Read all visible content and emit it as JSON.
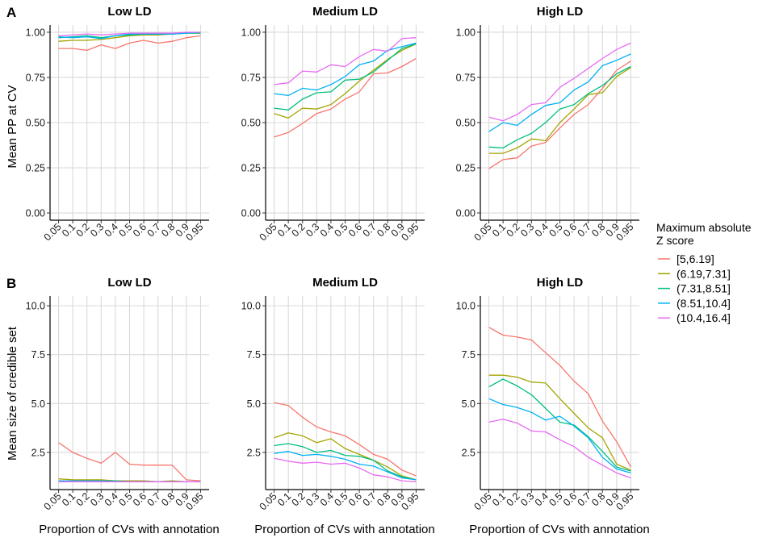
{
  "figure": {
    "row_labels": [
      "A",
      "B"
    ],
    "xlabel": "Proportion of CVs with annotation",
    "row_ylabels": [
      "Mean PP at CV",
      "Mean size of credible set"
    ],
    "legend_title_lines": [
      "Maximum absolute",
      "Z score"
    ],
    "legend_items": [
      "[5,6.19]",
      "(6.19,7.31]",
      "(7.31,8.51]",
      "(8.51,10.4]",
      "(10.4,16.4]"
    ],
    "colors": [
      "#F8766D",
      "#A3A500",
      "#00BF7D",
      "#00B0F6",
      "#E76BF3"
    ]
  },
  "chart_data": [
    {
      "type": "line",
      "title": "Low LD",
      "row": 0,
      "col": 0,
      "xlabel": "",
      "ylabel": "Mean PP at CV",
      "categories": [
        "0.05",
        "0.1",
        "0.2",
        "0.3",
        "0.4",
        "0.5",
        "0.6",
        "0.7",
        "0.8",
        "0.9",
        "0.95"
      ],
      "ylim": [
        -0.04,
        1.04
      ],
      "yticks": [
        0,
        0.25,
        0.5,
        0.75,
        1
      ],
      "ytick_labels": [
        "0.00",
        "0.25",
        "0.50",
        "0.75",
        "1.00"
      ],
      "grid": true,
      "legend": "right",
      "series": [
        {
          "name": "[5,6.19]",
          "values": [
            0.91,
            0.91,
            0.9,
            0.93,
            0.91,
            0.94,
            0.955,
            0.94,
            0.95,
            0.97,
            0.98
          ]
        },
        {
          "name": "(6.19,7.31]",
          "values": [
            0.95,
            0.955,
            0.955,
            0.96,
            0.97,
            0.98,
            0.985,
            0.985,
            0.99,
            0.995,
            0.995
          ]
        },
        {
          "name": "(7.31,8.51]",
          "values": [
            0.97,
            0.975,
            0.98,
            0.97,
            0.98,
            0.985,
            0.99,
            0.99,
            0.99,
            0.995,
            0.995
          ]
        },
        {
          "name": "(8.51,10.4]",
          "values": [
            0.975,
            0.97,
            0.975,
            0.965,
            0.98,
            0.99,
            0.99,
            0.99,
            0.99,
            0.995,
            1.0
          ]
        },
        {
          "name": "(10.4,16.4]",
          "values": [
            0.98,
            0.985,
            0.99,
            0.985,
            0.99,
            0.995,
            0.995,
            0.995,
            0.995,
            1.0,
            1.0
          ]
        }
      ]
    },
    {
      "type": "line",
      "title": "Medium LD",
      "row": 0,
      "col": 1,
      "xlabel": "",
      "ylabel": "",
      "categories": [
        "0.05",
        "0.1",
        "0.2",
        "0.3",
        "0.4",
        "0.5",
        "0.6",
        "0.7",
        "0.8",
        "0.9",
        "0.95"
      ],
      "ylim": [
        -0.04,
        1.04
      ],
      "yticks": [
        0,
        0.25,
        0.5,
        0.75,
        1
      ],
      "ytick_labels": [
        "0.00",
        "0.25",
        "0.50",
        "0.75",
        "1.00"
      ],
      "grid": true,
      "series": [
        {
          "name": "[5,6.19]",
          "values": [
            0.42,
            0.445,
            0.495,
            0.55,
            0.575,
            0.63,
            0.67,
            0.77,
            0.775,
            0.81,
            0.855
          ]
        },
        {
          "name": "(6.19,7.31]",
          "values": [
            0.55,
            0.525,
            0.58,
            0.575,
            0.6,
            0.66,
            0.73,
            0.79,
            0.85,
            0.9,
            0.935
          ]
        },
        {
          "name": "(7.31,8.51]",
          "values": [
            0.58,
            0.57,
            0.63,
            0.665,
            0.67,
            0.735,
            0.74,
            0.78,
            0.845,
            0.91,
            0.935
          ]
        },
        {
          "name": "(8.51,10.4]",
          "values": [
            0.66,
            0.65,
            0.69,
            0.68,
            0.71,
            0.755,
            0.82,
            0.84,
            0.9,
            0.92,
            0.94
          ]
        },
        {
          "name": "(10.4,16.4]",
          "values": [
            0.71,
            0.72,
            0.785,
            0.78,
            0.82,
            0.81,
            0.865,
            0.905,
            0.895,
            0.965,
            0.97
          ]
        }
      ]
    },
    {
      "type": "line",
      "title": "High LD",
      "row": 0,
      "col": 2,
      "xlabel": "",
      "ylabel": "",
      "categories": [
        "0.05",
        "0.1",
        "0.2",
        "0.3",
        "0.4",
        "0.5",
        "0.6",
        "0.7",
        "0.8",
        "0.9",
        "0.95"
      ],
      "ylim": [
        -0.04,
        1.04
      ],
      "yticks": [
        0,
        0.25,
        0.5,
        0.75,
        1
      ],
      "ytick_labels": [
        "0.00",
        "0.25",
        "0.50",
        "0.75",
        "1.00"
      ],
      "grid": true,
      "series": [
        {
          "name": "[5,6.19]",
          "values": [
            0.245,
            0.295,
            0.305,
            0.37,
            0.39,
            0.47,
            0.545,
            0.6,
            0.69,
            0.79,
            0.84
          ]
        },
        {
          "name": "(6.19,7.31]",
          "values": [
            0.33,
            0.33,
            0.36,
            0.41,
            0.4,
            0.5,
            0.575,
            0.655,
            0.665,
            0.755,
            0.805
          ]
        },
        {
          "name": "(7.31,8.51]",
          "values": [
            0.365,
            0.36,
            0.405,
            0.44,
            0.5,
            0.575,
            0.6,
            0.66,
            0.705,
            0.77,
            0.81
          ]
        },
        {
          "name": "(8.51,10.4]",
          "values": [
            0.45,
            0.5,
            0.485,
            0.545,
            0.595,
            0.61,
            0.68,
            0.725,
            0.815,
            0.845,
            0.88
          ]
        },
        {
          "name": "(10.4,16.4]",
          "values": [
            0.53,
            0.51,
            0.545,
            0.6,
            0.61,
            0.695,
            0.745,
            0.8,
            0.855,
            0.905,
            0.94
          ]
        }
      ]
    },
    {
      "type": "line",
      "title": "Low LD",
      "row": 1,
      "col": 0,
      "xlabel": "Proportion of CVs with annotation",
      "ylabel": "Mean size of credible set",
      "categories": [
        "0.05",
        "0.1",
        "0.2",
        "0.3",
        "0.4",
        "0.5",
        "0.6",
        "0.7",
        "0.8",
        "0.9",
        "0.95"
      ],
      "ylim": [
        0.6,
        10.5
      ],
      "yticks": [
        2.5,
        5,
        7.5,
        10
      ],
      "ytick_labels": [
        "2.5",
        "5.0",
        "7.5",
        "10.0"
      ],
      "grid": true,
      "series": [
        {
          "name": "[5,6.19]",
          "values": [
            3.0,
            2.5,
            2.2,
            1.95,
            2.5,
            1.9,
            1.85,
            1.85,
            1.85,
            1.1,
            1.05
          ]
        },
        {
          "name": "(6.19,7.31]",
          "values": [
            1.15,
            1.1,
            1.1,
            1.1,
            1.05,
            1.05,
            1.05,
            1.0,
            1.05,
            1.0,
            1.0
          ]
        },
        {
          "name": "(7.31,8.51]",
          "values": [
            1.05,
            1.05,
            1.05,
            1.05,
            1.05,
            1.0,
            1.0,
            1.0,
            1.0,
            1.0,
            1.0
          ]
        },
        {
          "name": "(8.51,10.4]",
          "values": [
            1.05,
            1.05,
            1.05,
            1.05,
            1.0,
            1.0,
            1.0,
            1.0,
            1.0,
            1.0,
            1.0
          ]
        },
        {
          "name": "(10.4,16.4]",
          "values": [
            1.0,
            1.0,
            1.0,
            1.0,
            1.0,
            1.0,
            1.0,
            1.0,
            1.0,
            1.0,
            1.0
          ]
        }
      ]
    },
    {
      "type": "line",
      "title": "Medium LD",
      "row": 1,
      "col": 1,
      "xlabel": "Proportion of CVs with annotation",
      "ylabel": "",
      "categories": [
        "0.05",
        "0.1",
        "0.2",
        "0.3",
        "0.4",
        "0.5",
        "0.6",
        "0.7",
        "0.8",
        "0.9",
        "0.95"
      ],
      "ylim": [
        0.6,
        10.5
      ],
      "yticks": [
        2.5,
        5,
        7.5,
        10
      ],
      "ytick_labels": [
        "2.5",
        "5.0",
        "7.5",
        "10.0"
      ],
      "grid": true,
      "series": [
        {
          "name": "[5,6.19]",
          "values": [
            5.05,
            4.9,
            4.3,
            3.8,
            3.55,
            3.35,
            2.9,
            2.4,
            2.15,
            1.6,
            1.3
          ]
        },
        {
          "name": "(6.19,7.31]",
          "values": [
            3.25,
            3.5,
            3.35,
            3.0,
            3.2,
            2.7,
            2.4,
            2.1,
            1.75,
            1.3,
            1.1
          ]
        },
        {
          "name": "(7.31,8.51]",
          "values": [
            2.85,
            2.95,
            2.8,
            2.5,
            2.6,
            2.35,
            2.3,
            2.1,
            1.55,
            1.25,
            1.1
          ]
        },
        {
          "name": "(8.51,10.4]",
          "values": [
            2.45,
            2.55,
            2.35,
            2.4,
            2.3,
            2.15,
            1.9,
            1.8,
            1.5,
            1.2,
            1.1
          ]
        },
        {
          "name": "(10.4,16.4]",
          "values": [
            2.2,
            2.05,
            1.95,
            2.0,
            1.9,
            1.95,
            1.7,
            1.35,
            1.25,
            1.05,
            1.0
          ]
        }
      ]
    },
    {
      "type": "line",
      "title": "High LD",
      "row": 1,
      "col": 2,
      "xlabel": "Proportion of CVs with annotation",
      "ylabel": "",
      "categories": [
        "0.05",
        "0.1",
        "0.2",
        "0.3",
        "0.4",
        "0.5",
        "0.6",
        "0.7",
        "0.8",
        "0.9",
        "0.95"
      ],
      "ylim": [
        0.6,
        10.5
      ],
      "yticks": [
        2.5,
        5,
        7.5,
        10
      ],
      "ytick_labels": [
        "2.5",
        "5.0",
        "7.5",
        "10.0"
      ],
      "grid": true,
      "series": [
        {
          "name": "[5,6.19]",
          "values": [
            8.9,
            8.5,
            8.4,
            8.25,
            7.6,
            6.95,
            6.15,
            5.5,
            4.1,
            3.05,
            1.75
          ]
        },
        {
          "name": "(6.19,7.31]",
          "values": [
            6.45,
            6.45,
            6.35,
            6.1,
            6.05,
            5.25,
            4.5,
            3.75,
            3.25,
            1.9,
            1.6
          ]
        },
        {
          "name": "(7.31,8.51]",
          "values": [
            5.85,
            6.25,
            5.9,
            5.45,
            4.75,
            4.05,
            3.9,
            3.3,
            2.55,
            1.75,
            1.55
          ]
        },
        {
          "name": "(8.51,10.4]",
          "values": [
            5.25,
            4.95,
            4.8,
            4.55,
            4.15,
            4.35,
            3.85,
            3.25,
            2.25,
            1.65,
            1.45
          ]
        },
        {
          "name": "(10.4,16.4]",
          "values": [
            4.05,
            4.2,
            4.0,
            3.6,
            3.55,
            3.15,
            2.8,
            2.25,
            1.85,
            1.45,
            1.2
          ]
        }
      ]
    }
  ]
}
